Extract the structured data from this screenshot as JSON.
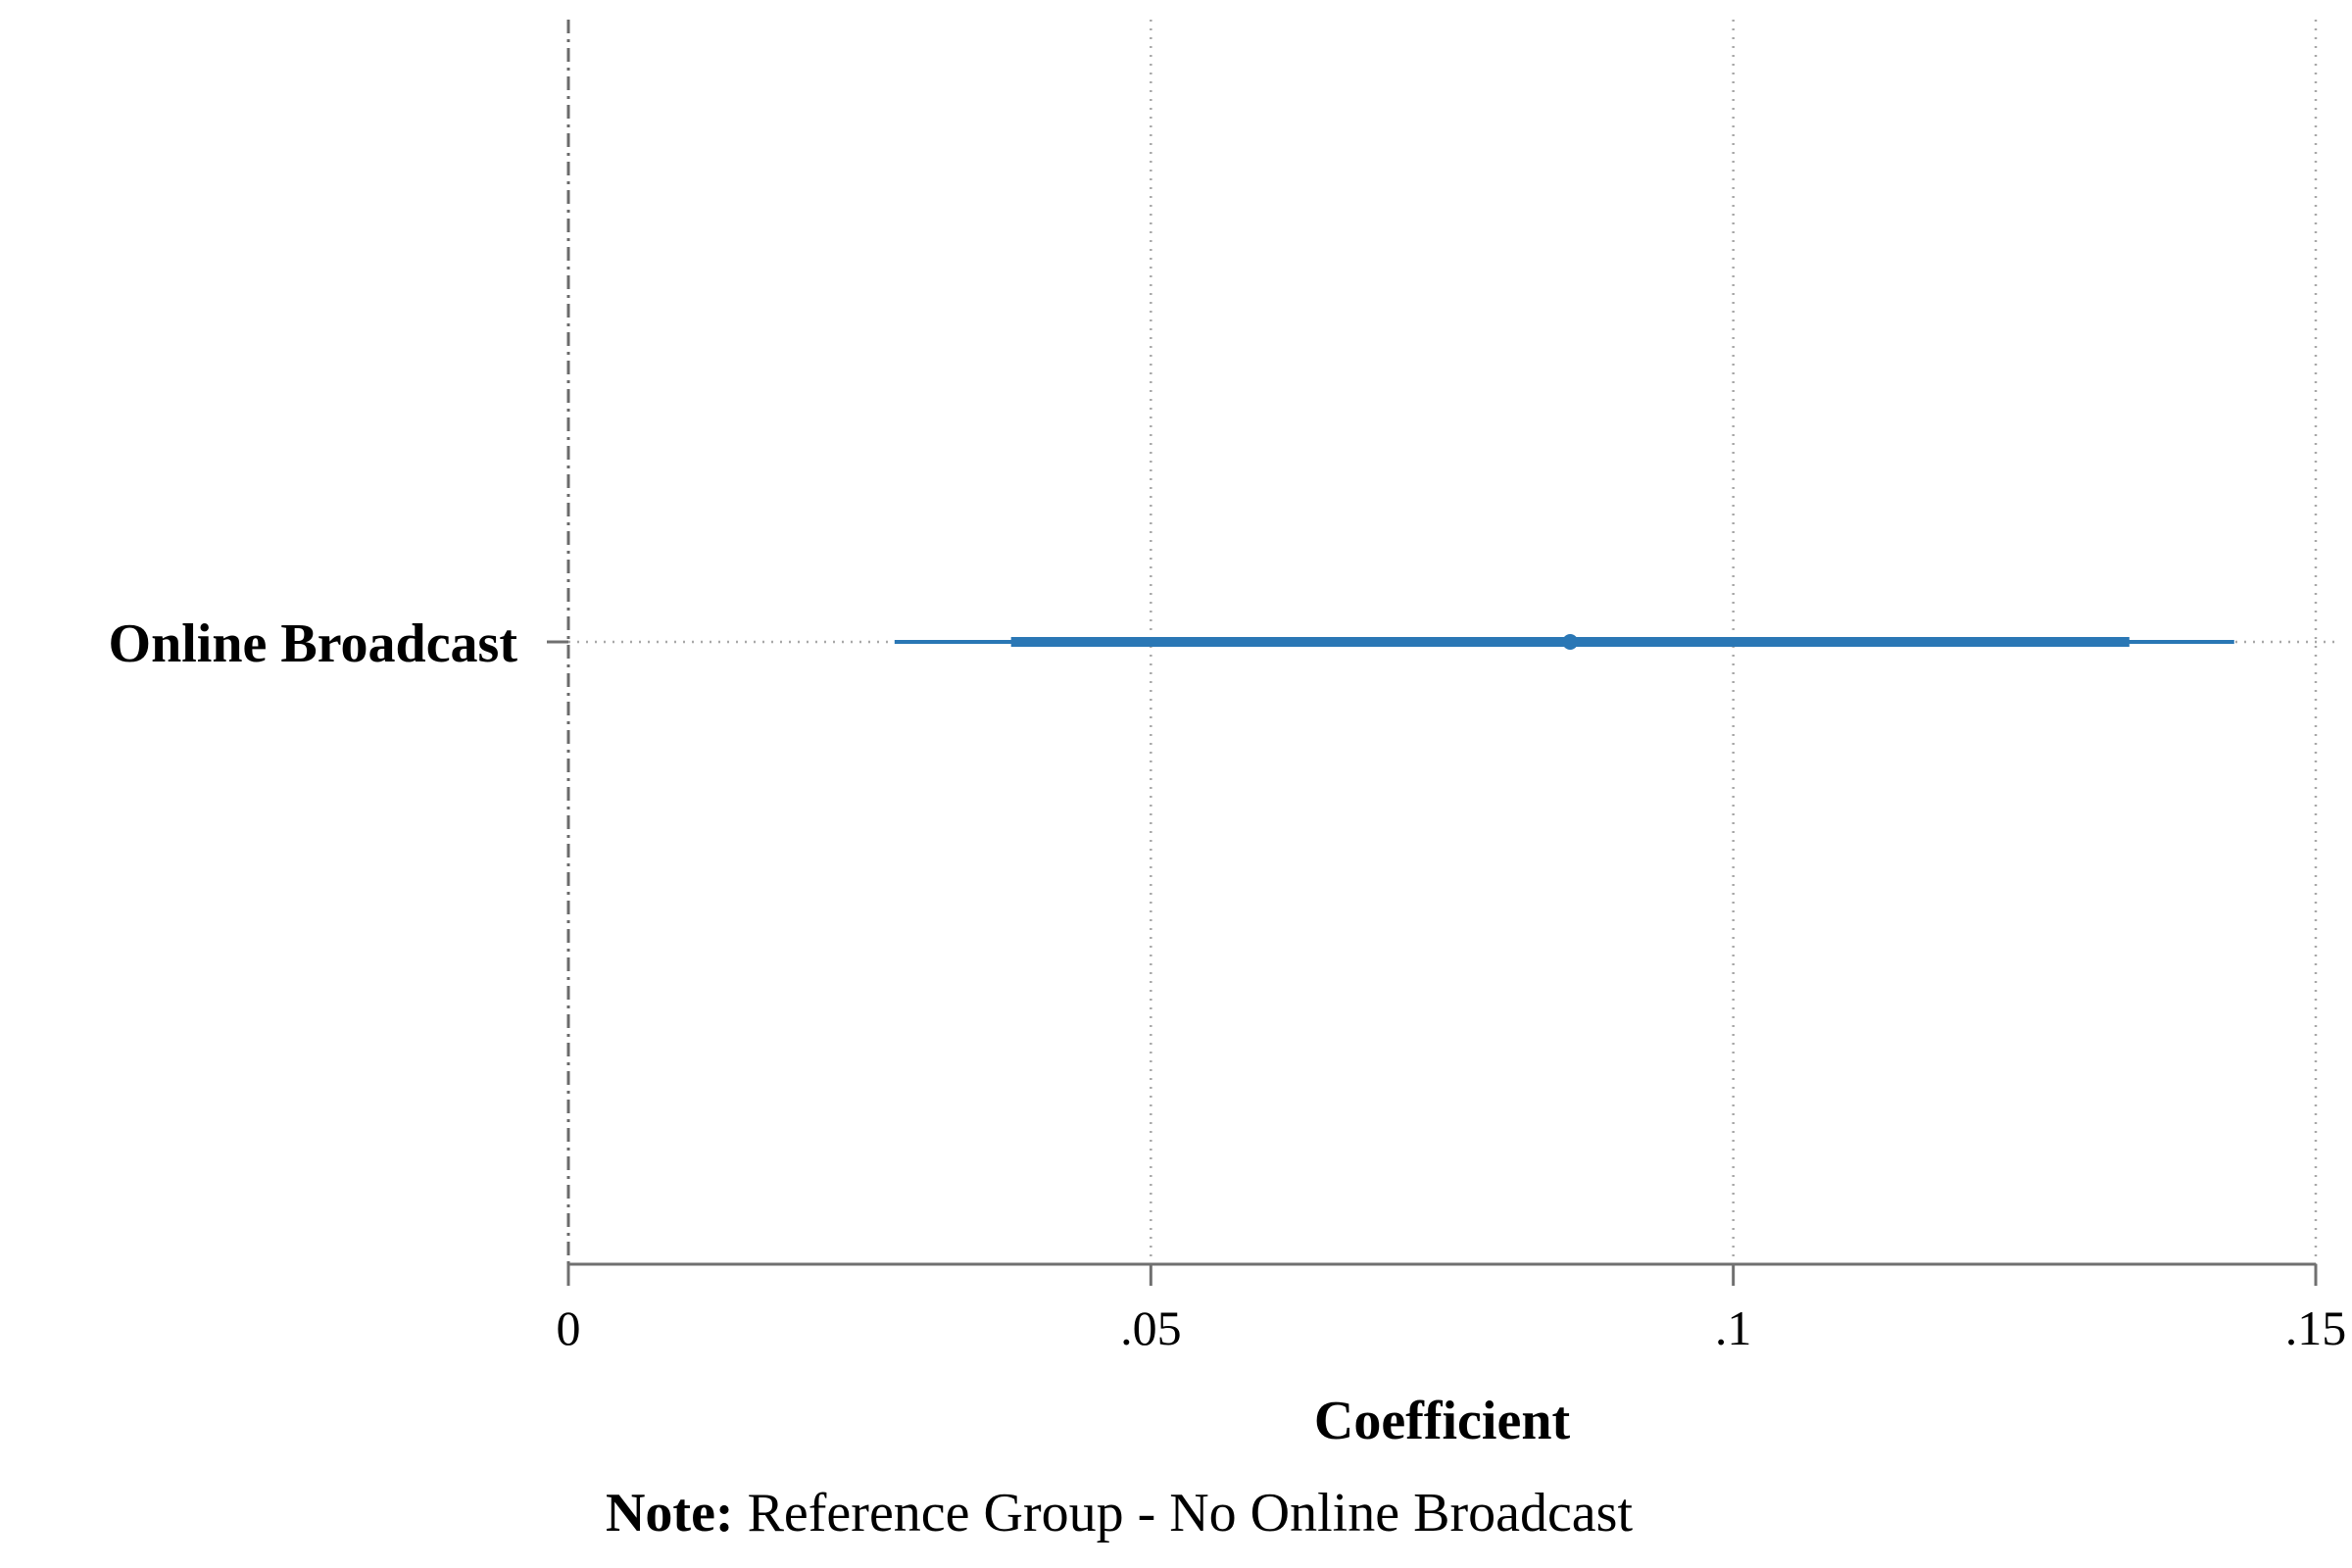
{
  "chart_data": {
    "type": "coefficient-plot",
    "xlabel": "Coefficient",
    "xlim": [
      0,
      0.15
    ],
    "x_ticks": [
      {
        "value": 0,
        "label": "0"
      },
      {
        "value": 0.05,
        "label": ".05"
      },
      {
        "value": 0.1,
        "label": ".1"
      },
      {
        "value": 0.15,
        "label": ".15"
      }
    ],
    "grid": "vertical-dotted",
    "reference_line": {
      "value": 0,
      "style": "dashed"
    },
    "series_color": "#2a77b5",
    "points": [
      {
        "label": "Online Broadcast",
        "estimate": 0.086,
        "ci_inner": [
          0.038,
          0.134
        ],
        "ci_outer": [
          0.028,
          0.143
        ]
      }
    ],
    "note": {
      "bold": "Note:",
      "text": " Reference Group - No Online Broadcast"
    }
  }
}
